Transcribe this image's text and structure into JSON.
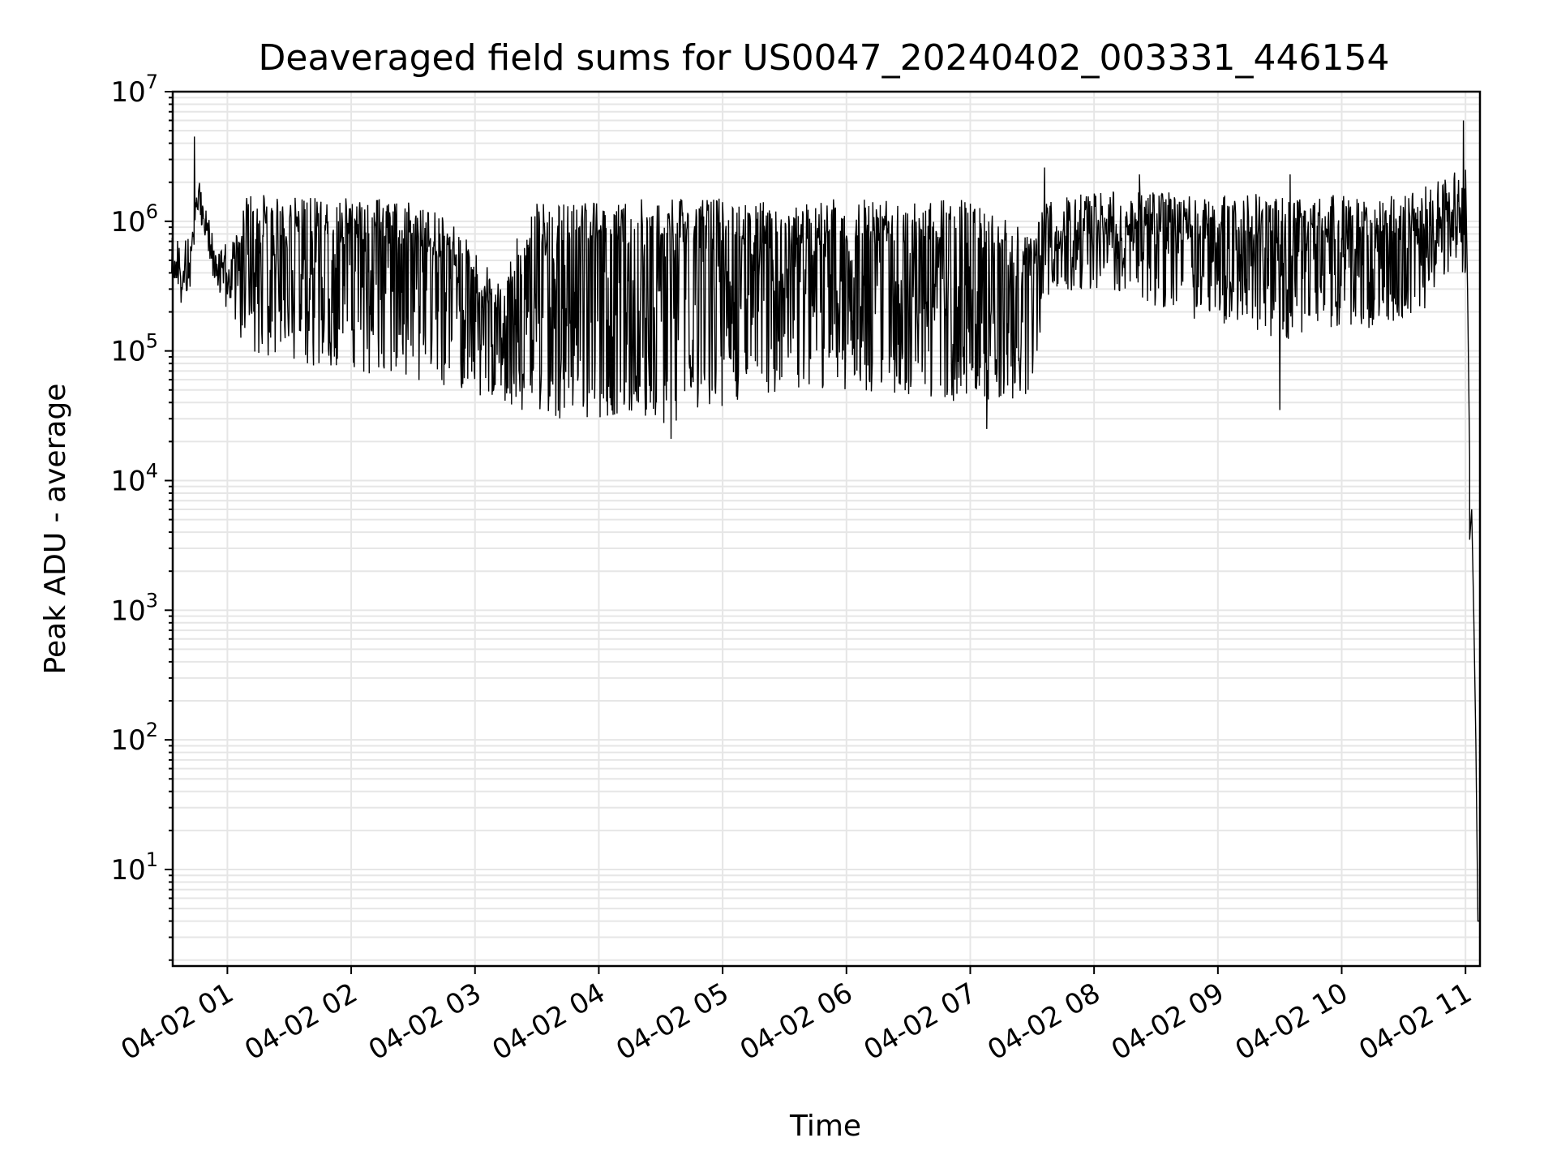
{
  "chart_data": {
    "type": "line",
    "title": "Deaveraged field sums for US0047_20240402_003331_446154",
    "xlabel": "Time",
    "ylabel": "Peak ADU - average",
    "yscale": "log",
    "ylim": [
      1.8,
      10000000
    ],
    "xlim": [
      "2024-04-02 00:33:31",
      "2024-04-02 11:07:00"
    ],
    "grid": "on (major and minor)",
    "line_color": "#000000",
    "grid_color": "#e6e6e6",
    "x_ticks": [
      {
        "t": "2024-04-02 01:00",
        "label": "04-02 01"
      },
      {
        "t": "2024-04-02 02:00",
        "label": "04-02 02"
      },
      {
        "t": "2024-04-02 03:00",
        "label": "04-02 03"
      },
      {
        "t": "2024-04-02 04:00",
        "label": "04-02 04"
      },
      {
        "t": "2024-04-02 05:00",
        "label": "04-02 05"
      },
      {
        "t": "2024-04-02 06:00",
        "label": "04-02 06"
      },
      {
        "t": "2024-04-02 07:00",
        "label": "04-02 07"
      },
      {
        "t": "2024-04-02 08:00",
        "label": "04-02 08"
      },
      {
        "t": "2024-04-02 09:00",
        "label": "04-02 09"
      },
      {
        "t": "2024-04-02 10:00",
        "label": "04-02 10"
      },
      {
        "t": "2024-04-02 11:00",
        "label": "04-02 11"
      }
    ],
    "y_ticks": [
      {
        "value": 10,
        "base": "10",
        "exp": "1"
      },
      {
        "value": 100,
        "base": "10",
        "exp": "2"
      },
      {
        "value": 1000,
        "base": "10",
        "exp": "3"
      },
      {
        "value": 10000,
        "base": "10",
        "exp": "4"
      },
      {
        "value": 100000,
        "base": "10",
        "exp": "5"
      },
      {
        "value": 1000000,
        "base": "10",
        "exp": "6"
      },
      {
        "value": 10000000,
        "base": "10",
        "exp": "7"
      }
    ],
    "series": [
      {
        "envelope": [
          {
            "t": "2024-04-02 00:33",
            "high": 550000,
            "low": 300000
          },
          {
            "t": "2024-04-02 00:38",
            "high": 500000,
            "low": 280000
          },
          {
            "t": "2024-04-02 00:42",
            "high": 600000,
            "low": 350000
          },
          {
            "t": "2024-04-02 00:46",
            "high": 2600000,
            "low": 900000
          },
          {
            "t": "2024-04-02 00:50",
            "high": 1200000,
            "low": 500000
          },
          {
            "t": "2024-04-02 00:55",
            "high": 600000,
            "low": 300000
          },
          {
            "t": "2024-04-02 01:00",
            "high": 700000,
            "low": 180000
          },
          {
            "t": "2024-04-02 01:10",
            "high": 1600000,
            "low": 100000
          },
          {
            "t": "2024-04-02 01:30",
            "high": 1600000,
            "low": 80000
          },
          {
            "t": "2024-04-02 02:00",
            "high": 1500000,
            "low": 70000
          },
          {
            "t": "2024-04-02 02:30",
            "high": 1500000,
            "low": 60000
          },
          {
            "t": "2024-04-02 02:50",
            "high": 1000000,
            "low": 50000
          },
          {
            "t": "2024-04-02 03:10",
            "high": 400000,
            "low": 40000
          },
          {
            "t": "2024-04-02 03:30",
            "high": 1400000,
            "low": 30000
          },
          {
            "t": "2024-04-02 04:00",
            "high": 1500000,
            "low": 28000
          },
          {
            "t": "2024-04-02 04:30",
            "high": 1500000,
            "low": 27000
          },
          {
            "t": "2024-04-02 05:00",
            "high": 1500000,
            "low": 35000
          },
          {
            "t": "2024-04-02 05:30",
            "high": 1400000,
            "low": 50000
          },
          {
            "t": "2024-04-02 06:00",
            "high": 1500000,
            "low": 50000
          },
          {
            "t": "2024-04-02 06:30",
            "high": 1400000,
            "low": 45000
          },
          {
            "t": "2024-04-02 07:00",
            "high": 1500000,
            "low": 35000
          },
          {
            "t": "2024-04-02 07:30",
            "high": 800000,
            "low": 45000
          },
          {
            "t": "2024-04-02 07:36",
            "high": 1400000,
            "low": 250000
          },
          {
            "t": "2024-04-02 08:00",
            "high": 1700000,
            "low": 300000
          },
          {
            "t": "2024-04-02 08:30",
            "high": 1700000,
            "low": 200000
          },
          {
            "t": "2024-04-02 09:00",
            "high": 1600000,
            "low": 150000
          },
          {
            "t": "2024-04-02 09:30",
            "high": 1700000,
            "low": 120000
          },
          {
            "t": "2024-04-02 10:00",
            "high": 1600000,
            "low": 150000
          },
          {
            "t": "2024-04-02 10:30",
            "high": 1600000,
            "low": 150000
          },
          {
            "t": "2024-04-02 10:55",
            "high": 2500000,
            "low": 350000
          },
          {
            "t": "2024-04-02 11:00",
            "high": 2500000,
            "low": 400000
          }
        ],
        "spikes": [
          {
            "t": "2024-04-02 00:44",
            "value": 4500000
          },
          {
            "t": "2024-04-02 07:36",
            "value": 2600000
          },
          {
            "t": "2024-04-02 08:22",
            "value": 2300000
          },
          {
            "t": "2024-04-02 09:35",
            "value": 2300000
          },
          {
            "t": "2024-04-02 10:59",
            "value": 6000000
          },
          {
            "t": "2024-04-02 09:30",
            "value": 35000
          },
          {
            "t": "2024-04-02 04:35",
            "value": 21000
          },
          {
            "t": "2024-04-02 07:08",
            "value": 25000
          }
        ],
        "tail": [
          {
            "t": "2024-04-02 11:00",
            "value": 2500000
          },
          {
            "t": "2024-04-02 11:01",
            "value": 300000
          },
          {
            "t": "2024-04-02 11:02",
            "value": 15000
          },
          {
            "t": "2024-04-02 11:02",
            "value": 3500
          },
          {
            "t": "2024-04-02 11:03",
            "value": 6000
          },
          {
            "t": "2024-04-02 11:04",
            "value": 900
          },
          {
            "t": "2024-04-02 11:05",
            "value": 100
          },
          {
            "t": "2024-04-02 11:06",
            "value": 4
          },
          {
            "t": "2024-04-02 11:07",
            "value": 4
          }
        ]
      }
    ]
  }
}
